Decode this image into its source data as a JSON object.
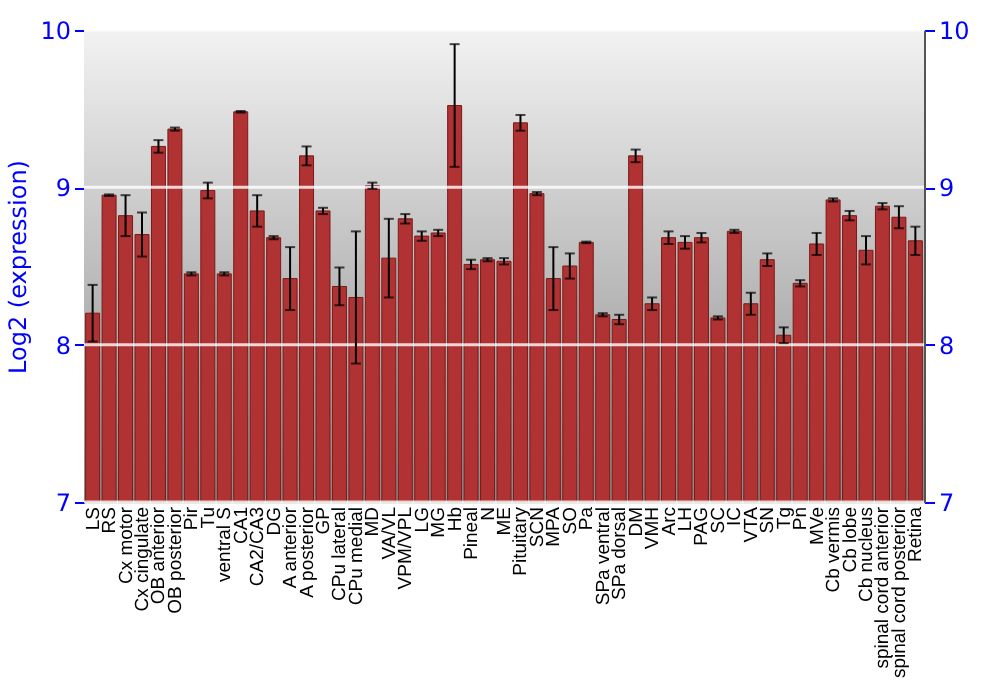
{
  "chart_data": {
    "type": "bar",
    "ylabel": "Log2 (expression)",
    "categories": [
      "LS",
      "RS",
      "Cx motor",
      "Cx cingulate",
      "OB anterior",
      "OB posterior",
      "Pir",
      "Tu",
      "ventral S",
      "CA1",
      "CA2/CA3",
      "DG",
      "A anterior",
      "A posterior",
      "GP",
      "CPu lateral",
      "CPu medial",
      "MD",
      "VA/VL",
      "VPM/VPL",
      "LG",
      "MG",
      "Hb",
      "Pineal",
      "N",
      "ME",
      "Pituitary",
      "SCN",
      "MPA",
      "SO",
      "Pa",
      "SPa ventral",
      "SPa dorsal",
      "DM",
      "VMH",
      "Arc",
      "LH",
      "PAG",
      "SC",
      "IC",
      "VTA",
      "SN",
      "Tg",
      "Pn",
      "MVe",
      "Cb vermis",
      "Cb lobe",
      "Cb nucleus",
      "spinal cord anterior",
      "spinal cord posterior",
      "Retina"
    ],
    "values": [
      8.2,
      8.95,
      8.82,
      8.7,
      9.26,
      9.37,
      8.45,
      8.98,
      8.45,
      9.48,
      8.85,
      8.68,
      8.42,
      9.2,
      8.85,
      8.37,
      8.3,
      9.01,
      8.55,
      8.8,
      8.69,
      8.71,
      9.52,
      8.51,
      8.54,
      8.53,
      9.41,
      8.96,
      8.42,
      8.5,
      8.65,
      8.19,
      8.16,
      9.2,
      8.26,
      8.68,
      8.65,
      8.68,
      8.17,
      8.72,
      8.26,
      8.54,
      8.06,
      8.39,
      8.64,
      8.92,
      8.82,
      8.6,
      8.88,
      8.81,
      8.66
    ],
    "errors": [
      0.18,
      0.005,
      0.13,
      0.14,
      0.04,
      0.01,
      0.01,
      0.05,
      0.01,
      0.005,
      0.1,
      0.01,
      0.2,
      0.06,
      0.02,
      0.12,
      0.42,
      0.02,
      0.25,
      0.03,
      0.03,
      0.02,
      0.39,
      0.03,
      0.01,
      0.02,
      0.05,
      0.01,
      0.2,
      0.08,
      0.005,
      0.01,
      0.03,
      0.04,
      0.04,
      0.04,
      0.04,
      0.03,
      0.01,
      0.01,
      0.07,
      0.04,
      0.05,
      0.02,
      0.07,
      0.01,
      0.03,
      0.09,
      0.02,
      0.07,
      0.09
    ],
    "color": "#b03232",
    "ylim": [
      7,
      10
    ],
    "yticks": [
      7,
      8,
      9,
      10
    ],
    "y2lim": [
      7,
      10
    ],
    "y2ticks": [
      7,
      8,
      9,
      10
    ],
    "grid": "y"
  }
}
